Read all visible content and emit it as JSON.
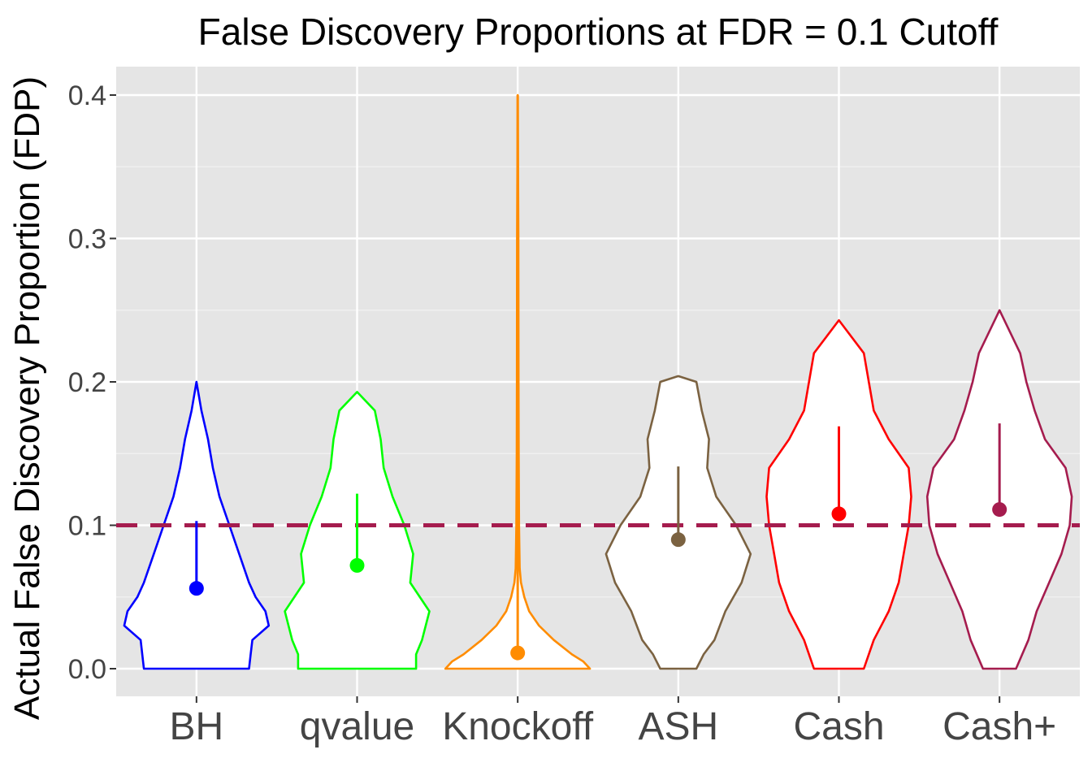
{
  "chart_data": {
    "type": "violin",
    "title": "False Discovery Proportions at FDR = 0.1 Cutoff",
    "xlabel": "",
    "ylabel": "Actual False Discovery Proportion (FDP)",
    "ylim": [
      -0.02,
      0.42
    ],
    "yticks": [
      "0.0",
      "0.1",
      "0.2",
      "0.3",
      "0.4"
    ],
    "grid": true,
    "legend": "none",
    "reference_line": {
      "y": 0.1,
      "style": "dashed",
      "color": "#A51C4E"
    },
    "background": "#E5E5E5",
    "categories": [
      "BH",
      "qvalue",
      "Knockoff",
      "ASH",
      "Cash",
      "Cash+"
    ],
    "series": [
      {
        "category": "BH",
        "color": "#0000FF",
        "mean": 0.056,
        "sd_upper": 0.103,
        "min": 0.0,
        "max": 0.2,
        "profile": [
          [
            0.0,
            0.16
          ],
          [
            0.01,
            0.165
          ],
          [
            0.02,
            0.17
          ],
          [
            0.03,
            0.22
          ],
          [
            0.04,
            0.21
          ],
          [
            0.05,
            0.18
          ],
          [
            0.06,
            0.16
          ],
          [
            0.08,
            0.13
          ],
          [
            0.1,
            0.1
          ],
          [
            0.12,
            0.07
          ],
          [
            0.14,
            0.05
          ],
          [
            0.16,
            0.035
          ],
          [
            0.18,
            0.015
          ],
          [
            0.2,
            0.0
          ]
        ]
      },
      {
        "category": "qvalue",
        "color": "#00FF00",
        "mean": 0.072,
        "sd_upper": 0.122,
        "min": 0.0,
        "max": 0.193,
        "profile": [
          [
            0.0,
            0.2
          ],
          [
            0.01,
            0.2
          ],
          [
            0.02,
            0.22
          ],
          [
            0.04,
            0.245
          ],
          [
            0.06,
            0.18
          ],
          [
            0.08,
            0.19
          ],
          [
            0.1,
            0.16
          ],
          [
            0.12,
            0.12
          ],
          [
            0.14,
            0.09
          ],
          [
            0.16,
            0.08
          ],
          [
            0.18,
            0.06
          ],
          [
            0.193,
            0.0
          ]
        ]
      },
      {
        "category": "Knockoff",
        "color": "#FF8C00",
        "mean": 0.011,
        "sd_upper": 0.4,
        "min": 0.0,
        "max": 0.4,
        "profile": [
          [
            0.0,
            0.44
          ],
          [
            0.005,
            0.4
          ],
          [
            0.01,
            0.33
          ],
          [
            0.02,
            0.22
          ],
          [
            0.03,
            0.13
          ],
          [
            0.04,
            0.07
          ],
          [
            0.05,
            0.04
          ],
          [
            0.06,
            0.02
          ],
          [
            0.07,
            0.012
          ],
          [
            0.1,
            0.008
          ],
          [
            0.15,
            0.006
          ],
          [
            0.2,
            0.005
          ],
          [
            0.3,
            0.004
          ],
          [
            0.4,
            0.0
          ]
        ]
      },
      {
        "category": "ASH",
        "color": "#7B6241",
        "mean": 0.09,
        "sd_upper": 0.141,
        "min": 0.0,
        "max": 0.204,
        "profile": [
          [
            0.0,
            0.05
          ],
          [
            0.01,
            0.07
          ],
          [
            0.02,
            0.1
          ],
          [
            0.04,
            0.13
          ],
          [
            0.06,
            0.175
          ],
          [
            0.08,
            0.2
          ],
          [
            0.1,
            0.16
          ],
          [
            0.12,
            0.105
          ],
          [
            0.14,
            0.08
          ],
          [
            0.16,
            0.085
          ],
          [
            0.18,
            0.065
          ],
          [
            0.2,
            0.05
          ],
          [
            0.204,
            0.0
          ]
        ]
      },
      {
        "category": "Cash",
        "color": "#FF0000",
        "mean": 0.108,
        "sd_upper": 0.169,
        "min": 0.0,
        "max": 0.243,
        "profile": [
          [
            0.0,
            0.05
          ],
          [
            0.02,
            0.07
          ],
          [
            0.04,
            0.1
          ],
          [
            0.06,
            0.12
          ],
          [
            0.08,
            0.13
          ],
          [
            0.1,
            0.14
          ],
          [
            0.12,
            0.145
          ],
          [
            0.14,
            0.14
          ],
          [
            0.16,
            0.1
          ],
          [
            0.18,
            0.07
          ],
          [
            0.2,
            0.06
          ],
          [
            0.22,
            0.05
          ],
          [
            0.243,
            0.0
          ]
        ]
      },
      {
        "category": "Cash+",
        "color": "#A51C4E",
        "mean": 0.111,
        "sd_upper": 0.171,
        "min": 0.0,
        "max": 0.25,
        "profile": [
          [
            0.0,
            0.04
          ],
          [
            0.02,
            0.07
          ],
          [
            0.04,
            0.09
          ],
          [
            0.06,
            0.12
          ],
          [
            0.08,
            0.15
          ],
          [
            0.1,
            0.17
          ],
          [
            0.12,
            0.175
          ],
          [
            0.14,
            0.16
          ],
          [
            0.16,
            0.11
          ],
          [
            0.18,
            0.085
          ],
          [
            0.2,
            0.065
          ],
          [
            0.22,
            0.05
          ],
          [
            0.25,
            0.0
          ]
        ]
      }
    ]
  }
}
